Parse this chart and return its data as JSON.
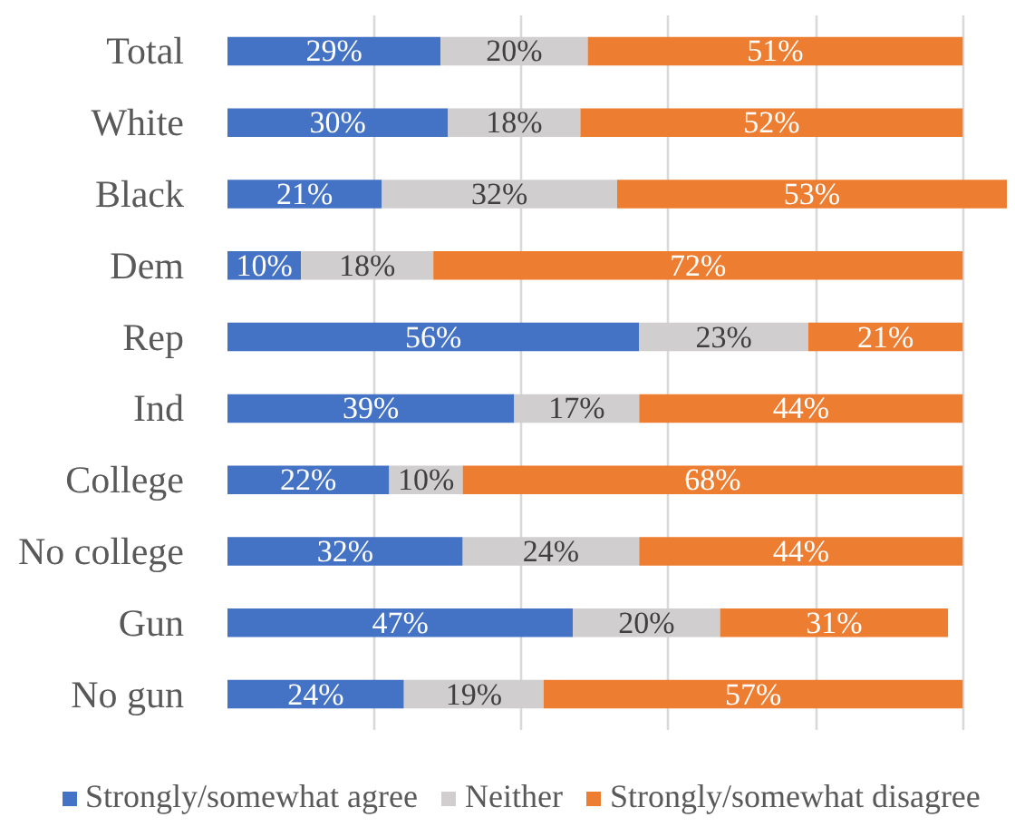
{
  "chart_data": {
    "type": "bar",
    "orientation": "horizontal",
    "stacked": true,
    "categories": [
      "Total",
      "White",
      "Black",
      "Dem",
      "Rep",
      "Ind",
      "College",
      "No college",
      "Gun",
      "No gun"
    ],
    "series": [
      {
        "name": "Strongly/somewhat agree",
        "color": "#4472c4",
        "values": [
          29,
          30,
          21,
          10,
          56,
          39,
          22,
          32,
          47,
          24
        ],
        "value_labels": [
          "29%",
          "30%",
          "21%",
          "10%",
          "56%",
          "39%",
          "22%",
          "32%",
          "47%",
          "24%"
        ]
      },
      {
        "name": "Neither",
        "color": "#d0cece",
        "values": [
          20,
          18,
          32,
          18,
          23,
          17,
          10,
          24,
          20,
          19
        ],
        "value_labels": [
          "20%",
          "18%",
          "32%",
          "18%",
          "23%",
          "17%",
          "10%",
          "24%",
          "20%",
          "19%"
        ]
      },
      {
        "name": "Strongly/somewhat disagree",
        "color": "#ed7d31",
        "values": [
          51,
          52,
          53,
          72,
          21,
          44,
          68,
          44,
          31,
          57
        ],
        "value_labels": [
          "51%",
          "52%",
          "53%",
          "72%",
          "21%",
          "44%",
          "68%",
          "44%",
          "31%",
          "57%"
        ]
      }
    ],
    "xlim": [
      0,
      106
    ],
    "grid": "x",
    "legend": "bottom",
    "tick_labels": "y"
  }
}
